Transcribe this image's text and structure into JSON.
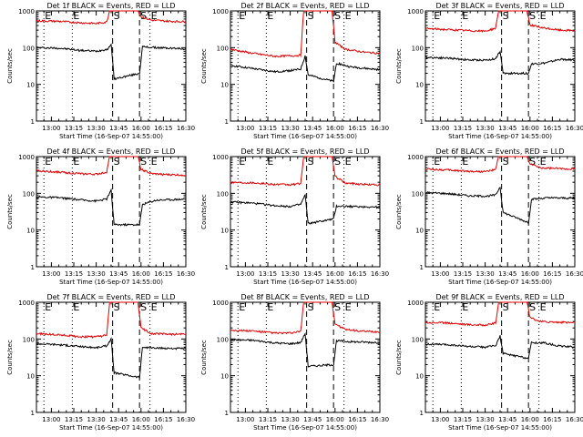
{
  "colors": {
    "events": "#000000",
    "lld": "#e00000",
    "frame": "#000000",
    "background": "#ffffff"
  },
  "chart_data": {
    "type": "line",
    "shared": {
      "xlabel": "Start Time (16-Sep-07 14:55:00)",
      "ylabel": "Counts/sec",
      "y_scale": "log",
      "ylim": [
        1,
        1000
      ],
      "y_tick_labels": [
        "1",
        "10",
        "100",
        "1000"
      ],
      "x_range_min": [
        -5,
        95
      ],
      "x_tick_labels": [
        "13:00",
        "13:15",
        "13:30",
        "13:45",
        "16:00",
        "16:15",
        "16:30"
      ],
      "x_ticks_min": [
        5,
        20,
        35,
        50,
        65,
        80,
        95
      ],
      "markers": [
        {
          "label": "E",
          "min": 0,
          "style": "dotted"
        },
        {
          "label": "S",
          "min": 46,
          "style": "dashed"
        },
        {
          "label": "S",
          "min": 64,
          "style": "dashed"
        },
        {
          "label": "E",
          "min": 71,
          "style": "dotted"
        },
        {
          "label": "E",
          "min": 19,
          "style": "dotted"
        }
      ],
      "grid": false,
      "legend": "none"
    },
    "panels": [
      {
        "title": "Det 1f BLACK = Events, RED = LLD",
        "series": [
          {
            "name": "Events",
            "color": "#000000",
            "points": [
              [
                -5,
                100
              ],
              [
                10,
                97
              ],
              [
                25,
                84
              ],
              [
                35,
                80
              ],
              [
                43,
                92
              ],
              [
                45,
                130
              ],
              [
                47,
                14
              ],
              [
                64,
                20
              ],
              [
                66,
                105
              ],
              [
                75,
                100
              ],
              [
                95,
                93
              ]
            ]
          },
          {
            "name": "LLD",
            "color": "#e00000",
            "points": [
              [
                -5,
                540
              ],
              [
                10,
                520
              ],
              [
                25,
                475
              ],
              [
                35,
                455
              ],
              [
                42,
                500
              ],
              [
                44,
                1000
              ],
              [
                63,
                1000
              ],
              [
                65,
                700
              ],
              [
                72,
                560
              ],
              [
                85,
                520
              ],
              [
                95,
                510
              ]
            ]
          }
        ]
      },
      {
        "title": "Det 2f BLACK = Events, RED = LLD",
        "series": [
          {
            "name": "Events",
            "color": "#000000",
            "points": [
              [
                -5,
                33
              ],
              [
                10,
                27
              ],
              [
                25,
                22
              ],
              [
                36,
                24
              ],
              [
                42,
                26
              ],
              [
                45,
                60
              ],
              [
                47,
                18
              ],
              [
                64,
                12
              ],
              [
                66,
                38
              ],
              [
                75,
                30
              ],
              [
                95,
                25
              ]
            ]
          },
          {
            "name": "LLD",
            "color": "#e00000",
            "points": [
              [
                -5,
                90
              ],
              [
                10,
                70
              ],
              [
                25,
                58
              ],
              [
                35,
                60
              ],
              [
                42,
                62
              ],
              [
                44,
                1000
              ],
              [
                63,
                1000
              ],
              [
                65,
                140
              ],
              [
                72,
                90
              ],
              [
                85,
                75
              ],
              [
                95,
                70
              ]
            ]
          }
        ]
      },
      {
        "title": "Det 3f BLACK = Events, RED = LLD",
        "series": [
          {
            "name": "Events",
            "color": "#000000",
            "points": [
              [
                -5,
                55
              ],
              [
                10,
                52
              ],
              [
                25,
                46
              ],
              [
                36,
                46
              ],
              [
                42,
                50
              ],
              [
                45,
                80
              ],
              [
                47,
                20
              ],
              [
                64,
                20
              ],
              [
                66,
                36
              ],
              [
                75,
                38
              ],
              [
                85,
                48
              ],
              [
                95,
                46
              ]
            ]
          },
          {
            "name": "LLD",
            "color": "#e00000",
            "points": [
              [
                -5,
                330
              ],
              [
                10,
                310
              ],
              [
                25,
                290
              ],
              [
                35,
                280
              ],
              [
                42,
                340
              ],
              [
                44,
                1000
              ],
              [
                63,
                1000
              ],
              [
                65,
                420
              ],
              [
                72,
                350
              ],
              [
                85,
                300
              ],
              [
                95,
                290
              ]
            ]
          }
        ]
      },
      {
        "title": "Det 4f BLACK = Events, RED = LLD",
        "series": [
          {
            "name": "Events",
            "color": "#000000",
            "points": [
              [
                -5,
                80
              ],
              [
                10,
                76
              ],
              [
                25,
                66
              ],
              [
                35,
                62
              ],
              [
                42,
                70
              ],
              [
                45,
                120
              ],
              [
                47,
                14
              ],
              [
                64,
                14
              ],
              [
                66,
                50
              ],
              [
                75,
                65
              ],
              [
                95,
                70
              ]
            ]
          },
          {
            "name": "LLD",
            "color": "#e00000",
            "points": [
              [
                -5,
                410
              ],
              [
                10,
                380
              ],
              [
                25,
                340
              ],
              [
                35,
                330
              ],
              [
                42,
                380
              ],
              [
                44,
                1000
              ],
              [
                63,
                1000
              ],
              [
                65,
                450
              ],
              [
                72,
                340
              ],
              [
                85,
                320
              ],
              [
                95,
                315
              ]
            ]
          }
        ]
      },
      {
        "title": "Det 5f BLACK = Events, RED = LLD",
        "series": [
          {
            "name": "Events",
            "color": "#000000",
            "points": [
              [
                -5,
                58
              ],
              [
                10,
                54
              ],
              [
                25,
                46
              ],
              [
                35,
                44
              ],
              [
                42,
                50
              ],
              [
                45,
                90
              ],
              [
                47,
                15
              ],
              [
                64,
                20
              ],
              [
                66,
                45
              ],
              [
                75,
                44
              ],
              [
                95,
                42
              ]
            ]
          },
          {
            "name": "LLD",
            "color": "#e00000",
            "points": [
              [
                -5,
                200
              ],
              [
                10,
                195
              ],
              [
                25,
                175
              ],
              [
                35,
                170
              ],
              [
                42,
                185
              ],
              [
                44,
                1000
              ],
              [
                63,
                1000
              ],
              [
                65,
                290
              ],
              [
                72,
                190
              ],
              [
                85,
                175
              ],
              [
                95,
                170
              ]
            ]
          }
        ]
      },
      {
        "title": "Det 6f BLACK = Events, RED = LLD",
        "series": [
          {
            "name": "Events",
            "color": "#000000",
            "points": [
              [
                -5,
                105
              ],
              [
                10,
                98
              ],
              [
                25,
                85
              ],
              [
                36,
                84
              ],
              [
                42,
                90
              ],
              [
                45,
                150
              ],
              [
                47,
                30
              ],
              [
                64,
                16
              ],
              [
                66,
                68
              ],
              [
                75,
                75
              ],
              [
                95,
                74
              ]
            ]
          },
          {
            "name": "LLD",
            "color": "#e00000",
            "points": [
              [
                -5,
                460
              ],
              [
                10,
                430
              ],
              [
                25,
                395
              ],
              [
                35,
                390
              ],
              [
                42,
                440
              ],
              [
                44,
                1000
              ],
              [
                63,
                1000
              ],
              [
                65,
                640
              ],
              [
                72,
                490
              ],
              [
                85,
                470
              ],
              [
                95,
                460
              ]
            ]
          }
        ]
      },
      {
        "title": "Det 7f BLACK = Events, RED = LLD",
        "series": [
          {
            "name": "Events",
            "color": "#000000",
            "points": [
              [
                -5,
                75
              ],
              [
                10,
                70
              ],
              [
                25,
                62
              ],
              [
                35,
                58
              ],
              [
                42,
                65
              ],
              [
                45,
                100
              ],
              [
                47,
                12
              ],
              [
                64,
                9
              ],
              [
                66,
                60
              ],
              [
                75,
                56
              ],
              [
                95,
                55
              ]
            ]
          },
          {
            "name": "LLD",
            "color": "#e00000",
            "points": [
              [
                -5,
                140
              ],
              [
                10,
                130
              ],
              [
                25,
                115
              ],
              [
                35,
                115
              ],
              [
                42,
                125
              ],
              [
                44,
                1000
              ],
              [
                63,
                1000
              ],
              [
                65,
                200
              ],
              [
                72,
                140
              ],
              [
                85,
                135
              ],
              [
                95,
                135
              ]
            ]
          }
        ]
      },
      {
        "title": "Det 8f BLACK = Events, RED = LLD",
        "series": [
          {
            "name": "Events",
            "color": "#000000",
            "points": [
              [
                -5,
                95
              ],
              [
                10,
                92
              ],
              [
                25,
                78
              ],
              [
                35,
                74
              ],
              [
                42,
                80
              ],
              [
                45,
                140
              ],
              [
                47,
                18
              ],
              [
                64,
                20
              ],
              [
                66,
                90
              ],
              [
                75,
                84
              ],
              [
                95,
                80
              ]
            ]
          },
          {
            "name": "LLD",
            "color": "#e00000",
            "points": [
              [
                -5,
                175
              ],
              [
                10,
                165
              ],
              [
                25,
                145
              ],
              [
                35,
                145
              ],
              [
                42,
                160
              ],
              [
                44,
                1000
              ],
              [
                63,
                1000
              ],
              [
                65,
                260
              ],
              [
                72,
                180
              ],
              [
                85,
                160
              ],
              [
                95,
                155
              ]
            ]
          }
        ]
      },
      {
        "title": "Det 9f BLACK = Events, RED = LLD",
        "series": [
          {
            "name": "Events",
            "color": "#000000",
            "points": [
              [
                -5,
                72
              ],
              [
                10,
                70
              ],
              [
                25,
                62
              ],
              [
                35,
                60
              ],
              [
                42,
                66
              ],
              [
                45,
                120
              ],
              [
                47,
                40
              ],
              [
                64,
                30
              ],
              [
                66,
                80
              ],
              [
                75,
                78
              ],
              [
                85,
                64
              ],
              [
                95,
                60
              ]
            ]
          },
          {
            "name": "LLD",
            "color": "#e00000",
            "points": [
              [
                -5,
                280
              ],
              [
                10,
                275
              ],
              [
                25,
                245
              ],
              [
                35,
                240
              ],
              [
                42,
                270
              ],
              [
                44,
                1000
              ],
              [
                63,
                1000
              ],
              [
                65,
                380
              ],
              [
                72,
                300
              ],
              [
                85,
                285
              ],
              [
                95,
                280
              ]
            ]
          }
        ]
      }
    ]
  }
}
